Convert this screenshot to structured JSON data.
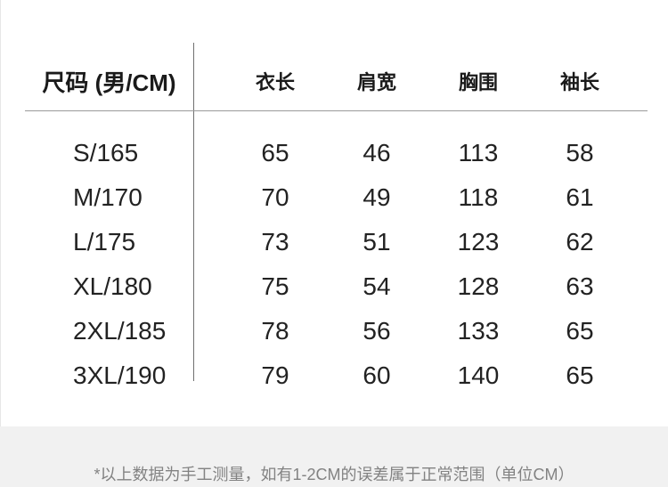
{
  "chart_data": {
    "type": "table",
    "title": "尺码 (男/CM)",
    "columns": [
      "尺码 (男/CM)",
      "衣长",
      "肩宽",
      "胸围",
      "袖长"
    ],
    "rows": [
      [
        "S/165",
        65,
        46,
        113,
        58
      ],
      [
        "M/170",
        70,
        49,
        118,
        61
      ],
      [
        "L/175",
        73,
        51,
        123,
        62
      ],
      [
        "XL/180",
        75,
        54,
        128,
        63
      ],
      [
        "2XL/185",
        78,
        56,
        133,
        65
      ],
      [
        "3XL/190",
        79,
        60,
        140,
        65
      ]
    ],
    "note": "*以上数据为手工测量，如有1-2CM的误差属于正常范围（单位CM）",
    "layout": "first column separated by vertical divider; thin rule under header row; grid off; unit CM"
  },
  "table": {
    "header": {
      "size_label": "尺码 (男/CM)",
      "columns": [
        "衣长",
        "肩宽",
        "胸围",
        "袖长"
      ]
    },
    "rows": [
      {
        "size": "S/165",
        "values": [
          "65",
          "46",
          "113",
          "58"
        ]
      },
      {
        "size": "M/170",
        "values": [
          "70",
          "49",
          "118",
          "61"
        ]
      },
      {
        "size": "L/175",
        "values": [
          "73",
          "51",
          "123",
          "62"
        ]
      },
      {
        "size": "XL/180",
        "values": [
          "75",
          "54",
          "128",
          "63"
        ]
      },
      {
        "size": "2XL/185",
        "values": [
          "78",
          "56",
          "133",
          "65"
        ]
      },
      {
        "size": "3XL/190",
        "values": [
          "79",
          "60",
          "140",
          "65"
        ]
      }
    ]
  },
  "footer": {
    "note": "*以上数据为手工测量，如有1-2CM的误差属于正常范围（单位CM）"
  },
  "colors": {
    "text": "#222222",
    "header_text": "#1a1a1a",
    "vertical_divider": "#707070",
    "header_rule": "#9a9a9a",
    "footer_bg": "#f1f1f1",
    "footer_text": "#828282",
    "background": "#ffffff"
  }
}
